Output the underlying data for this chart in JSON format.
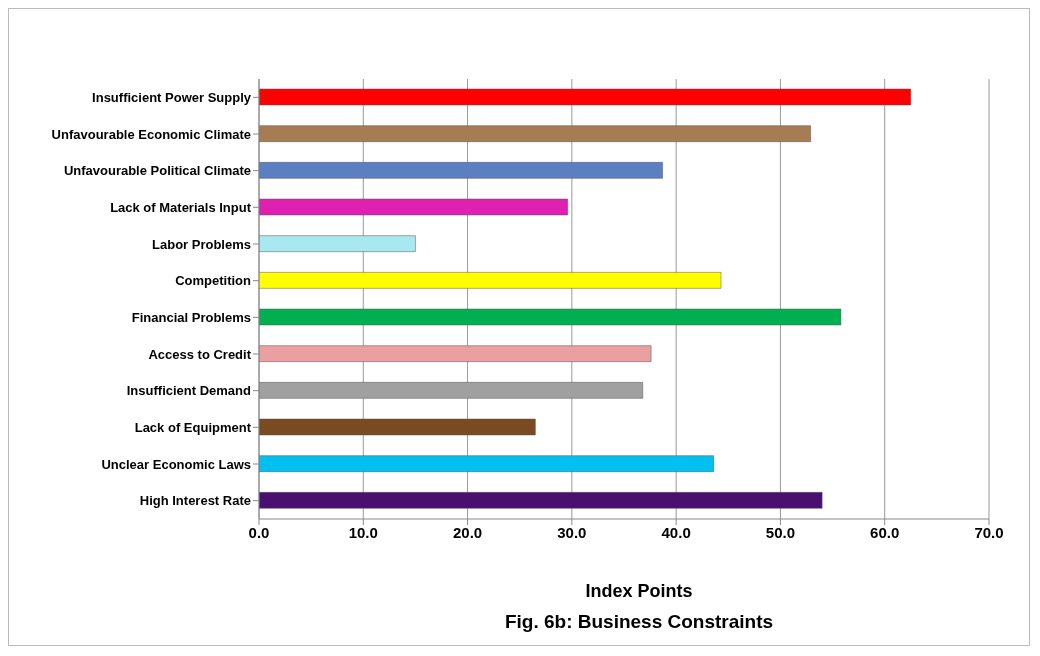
{
  "chart_data": {
    "type": "bar",
    "orientation": "horizontal",
    "title": "Fig. 6b: Business Constraints",
    "xlabel": "Index Points",
    "categories": [
      "Insufficient Power Supply",
      "Unfavourable Economic Climate",
      "Unfavourable Political Climate",
      "Lack of Materials Input",
      "Labor Problems",
      "Competition",
      "Financial Problems",
      "Access to Credit",
      "Insufficient Demand",
      "Lack of Equipment",
      "Unclear Economic Laws",
      "High Interest Rate"
    ],
    "values": [
      62.5,
      52.9,
      38.7,
      29.6,
      15.0,
      44.3,
      55.8,
      37.6,
      36.8,
      26.5,
      43.6,
      54.0
    ],
    "colors": [
      "#ff0000",
      "#a67c52",
      "#5b7fc0",
      "#e020b0",
      "#a8e8f0",
      "#ffff00",
      "#00b050",
      "#eaa0a0",
      "#a0a0a0",
      "#7a4a22",
      "#00c0f0",
      "#4a1070"
    ],
    "xlim": [
      0,
      70
    ],
    "xticks": [
      {
        "value": 0,
        "label": "0.0"
      },
      {
        "value": 10,
        "label": "10.0"
      },
      {
        "value": 20,
        "label": "20.0"
      },
      {
        "value": 30,
        "label": "30.0"
      },
      {
        "value": 40,
        "label": "40.0"
      },
      {
        "value": 50,
        "label": "50.0"
      },
      {
        "value": 60,
        "label": "60.0"
      },
      {
        "value": 70,
        "label": "70.0"
      }
    ],
    "grid": "x"
  }
}
